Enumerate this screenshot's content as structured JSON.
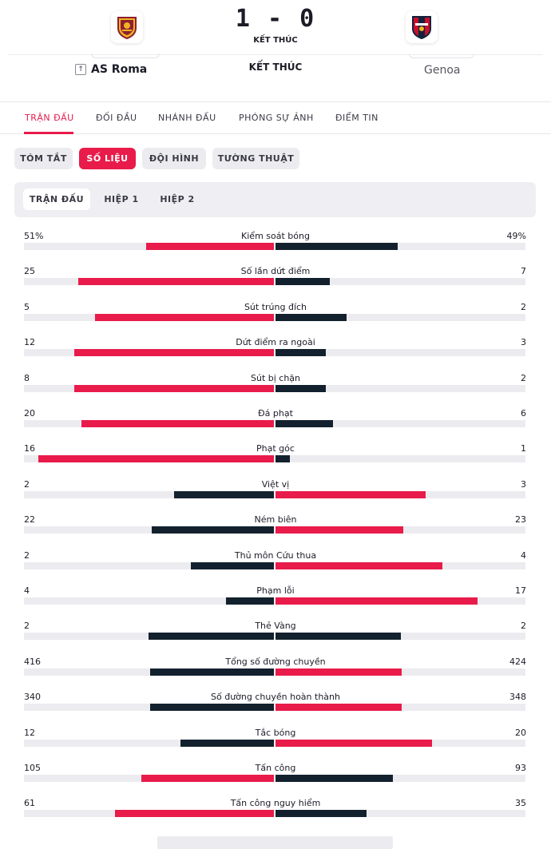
{
  "match": {
    "score": "1 - 0",
    "status_small": "KẾT THÚC",
    "status_main": "KẾT THÚC",
    "home_team": "AS Roma",
    "away_team": "Genoa"
  },
  "main_tabs": [
    {
      "label": "TRẬN ĐẤU",
      "active": true
    },
    {
      "label": "ĐỐI ĐẦU",
      "active": false
    },
    {
      "label": "NHÁNH ĐẤU",
      "active": false
    },
    {
      "label": "PHÓNG SỰ ẢNH",
      "active": false
    },
    {
      "label": "ĐIỂM TIN",
      "active": false
    }
  ],
  "sub_tabs": [
    {
      "label": "TÓM TẮT",
      "active": false
    },
    {
      "label": "SỐ LIỆU",
      "active": true
    },
    {
      "label": "ĐỘI HÌNH",
      "active": false
    },
    {
      "label": "TƯỜNG THUẬT",
      "active": false
    }
  ],
  "period_tabs": [
    {
      "label": "TRẬN ĐẤU",
      "active": true
    },
    {
      "label": "HIỆP 1",
      "active": false
    },
    {
      "label": "HIỆP 2",
      "active": false
    }
  ],
  "colors": {
    "accent": "#e81b4a",
    "dark": "#13212e",
    "track": "#ececf0"
  },
  "stats": [
    {
      "label": "Kiểm soát bóng",
      "home": "51%",
      "away": "49%",
      "home_value": 51,
      "away_value": 49,
      "winner": "home"
    },
    {
      "label": "Số lần dứt điểm",
      "home": "25",
      "away": "7",
      "home_value": 25,
      "away_value": 7,
      "winner": "home"
    },
    {
      "label": "Sút trúng đích",
      "home": "5",
      "away": "2",
      "home_value": 5,
      "away_value": 2,
      "winner": "home"
    },
    {
      "label": "Dứt điểm ra ngoài",
      "home": "12",
      "away": "3",
      "home_value": 12,
      "away_value": 3,
      "winner": "home"
    },
    {
      "label": "Sút bị chặn",
      "home": "8",
      "away": "2",
      "home_value": 8,
      "away_value": 2,
      "winner": "home"
    },
    {
      "label": "Đá phạt",
      "home": "20",
      "away": "6",
      "home_value": 20,
      "away_value": 6,
      "winner": "home"
    },
    {
      "label": "Phạt góc",
      "home": "16",
      "away": "1",
      "home_value": 16,
      "away_value": 1,
      "winner": "home"
    },
    {
      "label": "Việt vị",
      "home": "2",
      "away": "3",
      "home_value": 2,
      "away_value": 3,
      "winner": "away"
    },
    {
      "label": "Ném biên",
      "home": "22",
      "away": "23",
      "home_value": 22,
      "away_value": 23,
      "winner": "away"
    },
    {
      "label": "Thủ môn Cứu thua",
      "home": "2",
      "away": "4",
      "home_value": 2,
      "away_value": 4,
      "winner": "away"
    },
    {
      "label": "Phạm lỗi",
      "home": "4",
      "away": "17",
      "home_value": 4,
      "away_value": 17,
      "winner": "away"
    },
    {
      "label": "Thẻ Vàng",
      "home": "2",
      "away": "2",
      "home_value": 2,
      "away_value": 2,
      "winner": "none"
    },
    {
      "label": "Tổng số đường chuyền",
      "home": "416",
      "away": "424",
      "home_value": 416,
      "away_value": 424,
      "winner": "away"
    },
    {
      "label": "Số đường chuyền hoàn thành",
      "home": "340",
      "away": "348",
      "home_value": 340,
      "away_value": 348,
      "winner": "away"
    },
    {
      "label": "Tắc bóng",
      "home": "12",
      "away": "20",
      "home_value": 12,
      "away_value": 20,
      "winner": "away"
    },
    {
      "label": "Tấn công",
      "home": "105",
      "away": "93",
      "home_value": 105,
      "away_value": 93,
      "winner": "home"
    },
    {
      "label": "Tấn công nguy hiểm",
      "home": "61",
      "away": "35",
      "home_value": 61,
      "away_value": 35,
      "winner": "home"
    }
  ]
}
